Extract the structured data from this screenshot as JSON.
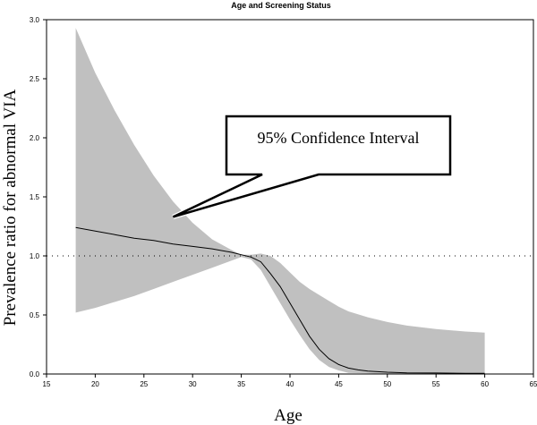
{
  "chart_data": {
    "type": "line",
    "title": "Age and Screening Status",
    "xlabel": "Age",
    "ylabel": "Prevalence ratio for abnormal VIA",
    "xlim": [
      15,
      65
    ],
    "ylim": [
      0,
      3.0
    ],
    "x_ticks": [
      "15",
      "20",
      "25",
      "30",
      "35",
      "40",
      "45",
      "50",
      "55",
      "60",
      "65"
    ],
    "y_ticks": [
      "0.0",
      "0.5",
      "1.0",
      "1.5",
      "2.0",
      "2.5",
      "3.0"
    ],
    "reference_line": {
      "y": 1.0,
      "style": "dotted"
    },
    "series": [
      {
        "values": [
          [
            18,
            1.24
          ],
          [
            20,
            1.21
          ],
          [
            22,
            1.18
          ],
          [
            24,
            1.15
          ],
          [
            26,
            1.13
          ],
          [
            28,
            1.1
          ],
          [
            30,
            1.08
          ],
          [
            32,
            1.06
          ],
          [
            34,
            1.03
          ],
          [
            35,
            1.01
          ],
          [
            36,
            0.99
          ],
          [
            37,
            0.95
          ],
          [
            38,
            0.85
          ],
          [
            39,
            0.74
          ],
          [
            40,
            0.6
          ],
          [
            41,
            0.46
          ],
          [
            42,
            0.32
          ],
          [
            43,
            0.21
          ],
          [
            44,
            0.13
          ],
          [
            45,
            0.08
          ],
          [
            46,
            0.05
          ],
          [
            47,
            0.035
          ],
          [
            48,
            0.025
          ],
          [
            50,
            0.015
          ],
          [
            52,
            0.01
          ],
          [
            55,
            0.008
          ],
          [
            58,
            0.006
          ],
          [
            60,
            0.005
          ]
        ]
      }
    ],
    "confidence_band": {
      "x": [
        18,
        20,
        22,
        24,
        26,
        28,
        30,
        32,
        34,
        35,
        36,
        37,
        38,
        39,
        40,
        41,
        42,
        43,
        44,
        45,
        46,
        48,
        50,
        52,
        55,
        58,
        60
      ],
      "lower": [
        0.52,
        0.56,
        0.61,
        0.66,
        0.72,
        0.78,
        0.84,
        0.9,
        0.96,
        0.99,
        0.97,
        0.88,
        0.74,
        0.6,
        0.46,
        0.33,
        0.21,
        0.12,
        0.06,
        0.03,
        0.01,
        0.005,
        0.0,
        0.0,
        0.0,
        0.0,
        0.0
      ],
      "upper": [
        2.93,
        2.55,
        2.23,
        1.94,
        1.68,
        1.46,
        1.28,
        1.14,
        1.05,
        1.01,
        1.01,
        1.02,
        1.0,
        0.94,
        0.86,
        0.78,
        0.72,
        0.67,
        0.62,
        0.57,
        0.53,
        0.48,
        0.44,
        0.41,
        0.38,
        0.36,
        0.35
      ],
      "color": "#c0c0c0"
    },
    "annotation": {
      "text": "95% Confidence Interval",
      "points_to": [
        28,
        1.33
      ]
    },
    "grid": false,
    "line_color": "#000000"
  }
}
